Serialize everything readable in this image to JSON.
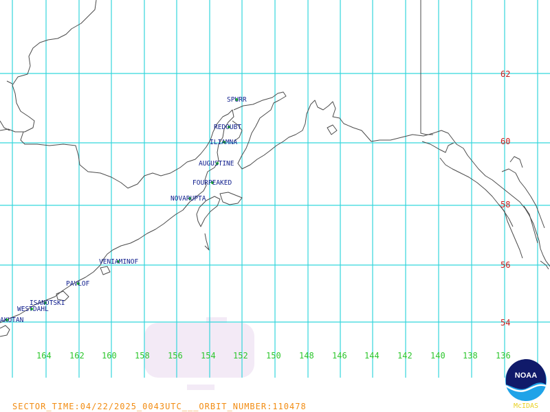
{
  "map": {
    "lat_labels": [
      "62",
      "60",
      "58",
      "56",
      "54"
    ],
    "lon_labels": [
      "164",
      "162",
      "160",
      "158",
      "156",
      "154",
      "152",
      "150",
      "148",
      "146",
      "144",
      "142",
      "140",
      "138",
      "136"
    ],
    "volcanoes": [
      {
        "name": "SPURR"
      },
      {
        "name": "REDOUBT"
      },
      {
        "name": "ILIAMNA"
      },
      {
        "name": "AUGUSTINE"
      },
      {
        "name": "FOURPEAKED"
      },
      {
        "name": "NOVARUPTA"
      },
      {
        "name": "VENIAMINOF"
      },
      {
        "name": "PAVLOF"
      },
      {
        "name": "ISANOTSKI"
      },
      {
        "name": "WESTDAHL"
      },
      {
        "name": "AKUTAN"
      }
    ]
  },
  "footer": {
    "sector_time": "SECTOR_TIME:04/22/2025_0043UTC___ORBIT_NUMBER:110478"
  },
  "logo": {
    "badge_text": "NOAA",
    "caption": "McIDAS"
  },
  "colors": {
    "grid": "#33d6dc",
    "lat_labels": "#c81e1e",
    "lon_labels": "#2cc62c",
    "volcano_names": "#0d1c8c",
    "footer": "#f28c12",
    "logo_caption": "#e8d021"
  }
}
